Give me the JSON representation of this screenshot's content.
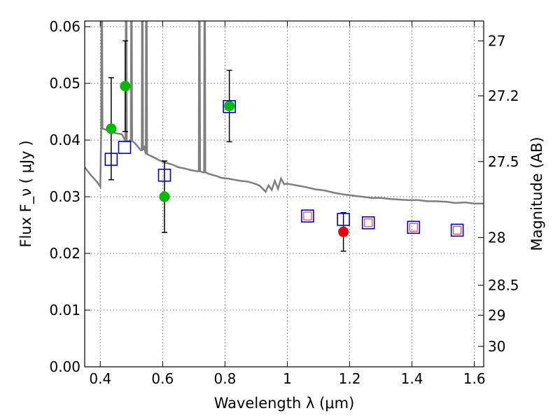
{
  "chart_data": {
    "type": "scatter",
    "xlabel": "Wavelength  λ (μm)",
    "ylabel": "Flux  F_ν  ( μJy )",
    "ylabel_right": "Magnitude (AB)",
    "xlim": [
      0.35,
      1.63
    ],
    "ylim": [
      0.0,
      0.061
    ],
    "grid": true,
    "x_ticks": [
      0.4,
      0.6,
      0.8,
      1.0,
      1.2,
      1.4,
      1.6
    ],
    "x_tick_labels": [
      "0.4",
      "0.6",
      "0.8",
      "1",
      "1.2",
      "1.4",
      "1.6"
    ],
    "y_ticks": [
      0.0,
      0.01,
      0.02,
      0.03,
      0.04,
      0.05,
      0.06
    ],
    "y_tick_labels": [
      "0.00",
      "0.01",
      "0.02",
      "0.03",
      "0.04",
      "0.05",
      "0.06"
    ],
    "right_ticks": [
      {
        "label": "27",
        "flux": 0.0575
      },
      {
        "label": "27.2",
        "flux": 0.0478
      },
      {
        "label": "27.5",
        "flux": 0.0362
      },
      {
        "label": "28",
        "flux": 0.0228
      },
      {
        "label": "28.5",
        "flux": 0.0144
      },
      {
        "label": "29",
        "flux": 0.0091
      },
      {
        "label": "30",
        "flux": 0.0036
      }
    ],
    "template_curve": {
      "color": "#7f7f7f",
      "points": [
        [
          0.35,
          0.0352
        ],
        [
          0.37,
          0.0338
        ],
        [
          0.39,
          0.0326
        ],
        [
          0.4,
          0.0318
        ],
        [
          0.41,
          0.042
        ],
        [
          0.43,
          0.0415
        ],
        [
          0.45,
          0.0412
        ],
        [
          0.47,
          0.041
        ],
        [
          0.49,
          0.0398
        ],
        [
          0.51,
          0.0395
        ],
        [
          0.53,
          0.0382
        ],
        [
          0.54,
          0.039
        ],
        [
          0.55,
          0.0375
        ],
        [
          0.57,
          0.037
        ],
        [
          0.59,
          0.0364
        ],
        [
          0.61,
          0.036
        ],
        [
          0.63,
          0.0357
        ],
        [
          0.65,
          0.0352
        ],
        [
          0.67,
          0.035
        ],
        [
          0.69,
          0.0347
        ],
        [
          0.71,
          0.0345
        ],
        [
          0.73,
          0.0343
        ],
        [
          0.75,
          0.034
        ],
        [
          0.77,
          0.0337
        ],
        [
          0.79,
          0.0333
        ],
        [
          0.81,
          0.0332
        ],
        [
          0.83,
          0.033
        ],
        [
          0.85,
          0.0328
        ],
        [
          0.87,
          0.0327
        ],
        [
          0.89,
          0.0324
        ],
        [
          0.91,
          0.032
        ],
        [
          0.92,
          0.0315
        ],
        [
          0.93,
          0.0309
        ],
        [
          0.94,
          0.032
        ],
        [
          0.95,
          0.0312
        ],
        [
          0.96,
          0.0328
        ],
        [
          0.97,
          0.0314
        ],
        [
          0.98,
          0.0332
        ],
        [
          0.99,
          0.0322
        ],
        [
          1.0,
          0.0323
        ],
        [
          1.03,
          0.032
        ],
        [
          1.06,
          0.0317
        ],
        [
          1.09,
          0.0313
        ],
        [
          1.12,
          0.0311
        ],
        [
          1.15,
          0.0307
        ],
        [
          1.18,
          0.0304
        ],
        [
          1.21,
          0.0302
        ],
        [
          1.24,
          0.03
        ],
        [
          1.27,
          0.0298
        ],
        [
          1.3,
          0.0298
        ],
        [
          1.33,
          0.0296
        ],
        [
          1.36,
          0.0295
        ],
        [
          1.39,
          0.0294
        ],
        [
          1.42,
          0.0294
        ],
        [
          1.45,
          0.0292
        ],
        [
          1.48,
          0.0292
        ],
        [
          1.51,
          0.0291
        ],
        [
          1.54,
          0.0289
        ],
        [
          1.57,
          0.029
        ],
        [
          1.6,
          0.0288
        ],
        [
          1.63,
          0.0288
        ]
      ],
      "emission_lines": [
        {
          "x": 0.405,
          "peak": 0.061
        },
        {
          "x": 0.483,
          "peak": 0.061
        },
        {
          "x": 0.5,
          "peak": 0.061
        },
        {
          "x": 0.535,
          "peak": 0.061
        },
        {
          "x": 0.548,
          "peak": 0.061
        },
        {
          "x": 0.718,
          "peak": 0.061
        },
        {
          "x": 0.735,
          "peak": 0.061
        }
      ]
    },
    "series": [
      {
        "marker": "circle",
        "color": "#00bb00",
        "points": [
          {
            "x": 0.435,
            "y": 0.042,
            "yerr": 0.009
          },
          {
            "x": 0.48,
            "y": 0.0495,
            "yerr": 0.008
          },
          {
            "x": 0.606,
            "y": 0.03,
            "yerr": 0.0063
          },
          {
            "x": 0.814,
            "y": 0.046,
            "yerr": 0.0063
          }
        ]
      },
      {
        "marker": "circle",
        "color": "#ee0000",
        "points": [
          {
            "x": 1.18,
            "y": 0.0238,
            "yerr": 0.0034
          }
        ]
      },
      {
        "marker": "open-square",
        "color": "#0000dd",
        "points": [
          {
            "x": 0.435,
            "y": 0.0366
          },
          {
            "x": 0.478,
            "y": 0.0387
          },
          {
            "x": 0.606,
            "y": 0.0338
          },
          {
            "x": 0.814,
            "y": 0.0459
          },
          {
            "x": 1.065,
            "y": 0.0266
          },
          {
            "x": 1.18,
            "y": 0.026
          },
          {
            "x": 1.26,
            "y": 0.0254
          },
          {
            "x": 1.405,
            "y": 0.0246
          },
          {
            "x": 1.545,
            "y": 0.0241
          }
        ]
      },
      {
        "marker": "open-square-small",
        "color": "#ee4444",
        "points": [
          {
            "x": 1.065,
            "y": 0.0266
          },
          {
            "x": 1.26,
            "y": 0.0254
          },
          {
            "x": 1.405,
            "y": 0.0246
          },
          {
            "x": 1.545,
            "y": 0.0241
          }
        ]
      }
    ]
  }
}
